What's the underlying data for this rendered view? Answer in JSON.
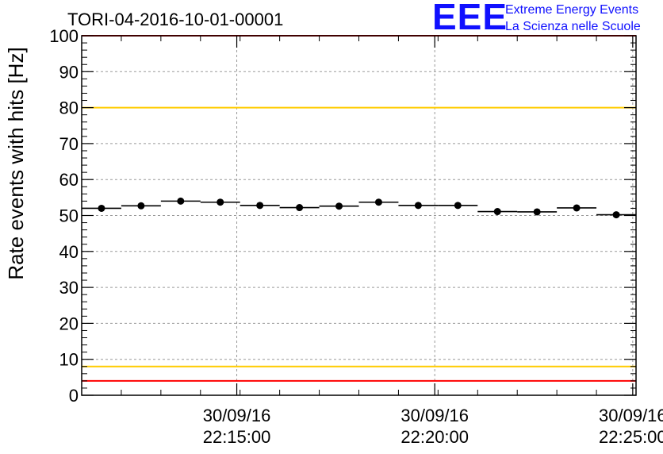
{
  "logo": {
    "mark": "EEE",
    "line1": "Extreme Energy Events",
    "line2": "La Scienza nelle Scuole",
    "color": "#1010ff"
  },
  "chart_data": {
    "type": "scatter",
    "title": "TORI-04-2016-10-01-00001",
    "ylabel": "Rate events with hits [Hz]",
    "xlabel": "",
    "ylim": [
      0,
      100
    ],
    "yticks": [
      0,
      10,
      20,
      30,
      40,
      50,
      60,
      70,
      80,
      90,
      100
    ],
    "xlim": [
      "30/09/16 22:11:05",
      "30/09/16 22:25:05"
    ],
    "xticks": [
      {
        "date": "30/09/16",
        "time": "22:15:00"
      },
      {
        "date": "30/09/16",
        "time": "22:20:00"
      },
      {
        "date": "30/09/16",
        "time": "22:25:00"
      }
    ],
    "grid": true,
    "bin_width_seconds": 60,
    "series": [
      {
        "x": [
          "22:11:35",
          "22:12:35",
          "22:13:35",
          "22:14:35",
          "22:15:35",
          "22:16:35",
          "22:17:35",
          "22:18:35",
          "22:19:35",
          "22:20:35",
          "22:21:35",
          "22:22:35",
          "22:23:35",
          "22:24:35"
        ],
        "y": [
          52.0,
          52.7,
          54.0,
          53.7,
          52.8,
          52.2,
          52.6,
          53.7,
          52.8,
          52.8,
          51.1,
          51.0,
          52.1,
          50.2
        ],
        "color": "#000000"
      }
    ],
    "reference_lines": [
      {
        "y": 100,
        "color": "#ff0000"
      },
      {
        "y": 80,
        "color": "#ffcc00"
      },
      {
        "y": 8,
        "color": "#ffcc00"
      },
      {
        "y": 4,
        "color": "#ff0000"
      }
    ]
  }
}
